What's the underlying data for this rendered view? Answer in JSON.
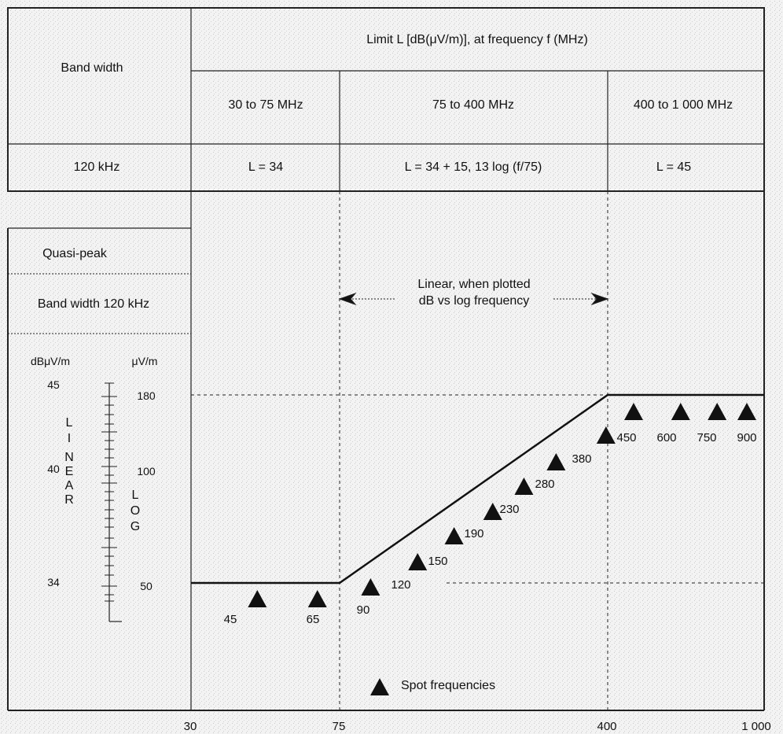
{
  "table": {
    "bandwidth_header": "Band width",
    "limit_header": "Limit L [dB(μV/m)], at frequency f (MHz)",
    "ranges": [
      "30 to 75 MHz",
      "75 to 400 MHz",
      "400 to 1 000 MHz"
    ],
    "bandwidth_value": "120 kHz",
    "formulas": [
      "L = 34",
      "L = 34 + 15, 13 log (f/75)",
      "L = 45"
    ]
  },
  "legend_box": {
    "detector": "Quasi-peak",
    "bandwidth": "Band width 120 kHz"
  },
  "scale": {
    "unit_db": "dBμV/m",
    "unit_uv": "μV/m",
    "db_values": [
      "45",
      "40",
      "34"
    ],
    "uv_values": [
      "180",
      "100",
      "50"
    ],
    "linear_word": [
      "L",
      "I",
      "N",
      "E",
      "A",
      "R"
    ],
    "log_word": [
      "L",
      "O",
      "G"
    ]
  },
  "annotation": {
    "line1": "Linear, when plotted",
    "line2": "dB vs log frequency"
  },
  "spot_legend": "Spot frequencies",
  "x_ticks": [
    "30",
    "75",
    "400",
    "1 000"
  ],
  "spot_frequencies": [
    "45",
    "65",
    "90",
    "120",
    "150",
    "190",
    "230",
    "280",
    "380",
    "450",
    "600",
    "750",
    "900"
  ],
  "colors": {
    "background": "#f2f2f2",
    "ink": "#111111"
  }
}
